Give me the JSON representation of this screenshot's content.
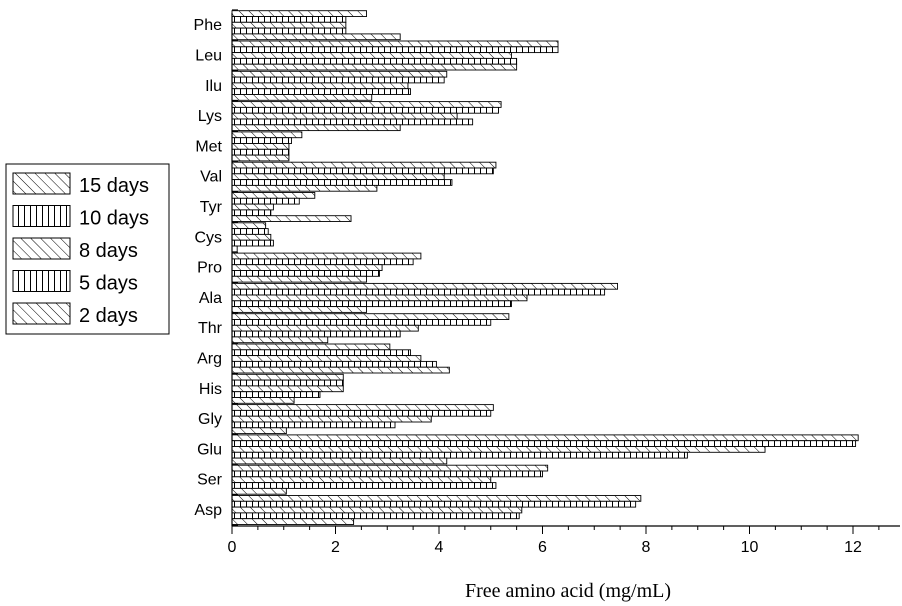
{
  "chart_data": {
    "type": "bar",
    "orientation": "horizontal",
    "xlabel": "Free amino acid (mg/mL)",
    "xlim": [
      0,
      12.6
    ],
    "xticks": [
      "0",
      "2",
      "4",
      "6",
      "8",
      "10",
      "12"
    ],
    "categories": [
      "Asp",
      "Ser",
      "Glu",
      "Gly",
      "His",
      "Arg",
      "Thr",
      "Ala",
      "Pro",
      "Cys",
      "Tyr",
      "Val",
      "Met",
      "Lys",
      "Ilu",
      "Leu",
      "Phe"
    ],
    "legend_position": "left",
    "series": [
      {
        "name": "15 days",
        "pattern": "hatch-diagonal",
        "values": [
          7.9,
          6.1,
          12.1,
          5.05,
          2.15,
          3.05,
          5.35,
          7.45,
          3.65,
          0.65,
          1.6,
          5.1,
          1.35,
          5.2,
          4.15,
          6.3,
          2.6
        ]
      },
      {
        "name": "10 days",
        "pattern": "hatch-vertical",
        "values": [
          7.8,
          6.0,
          12.05,
          5.0,
          2.15,
          3.45,
          5.0,
          7.2,
          3.5,
          0.7,
          1.3,
          5.05,
          1.15,
          5.15,
          4.1,
          6.3,
          2.2
        ]
      },
      {
        "name": "8 days",
        "pattern": "hatch-diagonal",
        "values": [
          5.6,
          5.0,
          10.3,
          3.85,
          2.15,
          3.65,
          3.6,
          5.7,
          2.9,
          0.75,
          0.8,
          4.1,
          1.1,
          4.35,
          3.4,
          5.4,
          2.2
        ]
      },
      {
        "name": "5 days",
        "pattern": "hatch-vertical",
        "values": [
          5.55,
          5.1,
          8.8,
          3.15,
          1.7,
          3.95,
          3.25,
          5.4,
          2.85,
          0.8,
          0.75,
          4.25,
          1.1,
          4.65,
          3.45,
          5.5,
          2.2
        ]
      },
      {
        "name": "2 days",
        "pattern": "hatch-diagonal",
        "values": [
          2.35,
          1.05,
          4.15,
          1.05,
          1.2,
          4.2,
          1.85,
          2.6,
          2.6,
          0.1,
          2.3,
          2.8,
          1.1,
          3.25,
          2.7,
          5.5,
          3.25
        ]
      }
    ]
  }
}
